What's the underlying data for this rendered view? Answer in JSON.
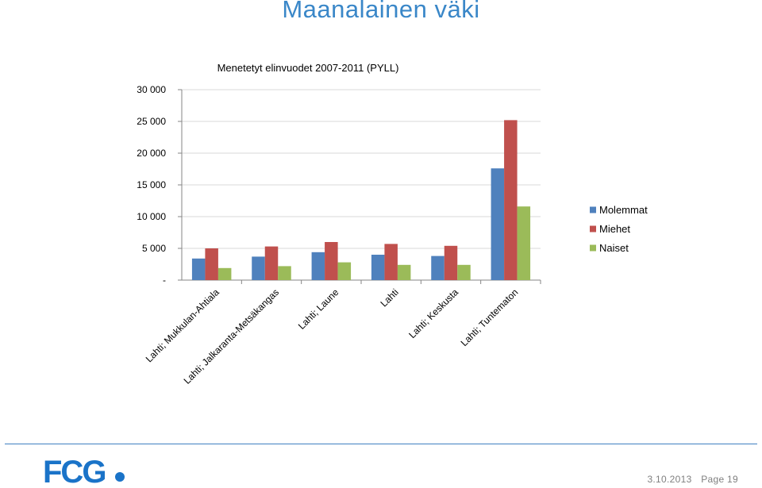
{
  "page": {
    "title": "Maanalainen väki",
    "date": "3.10.2013",
    "page_label": "Page 19",
    "logo_text": "FCG",
    "accent_color": "#1a73c8"
  },
  "chart_data": {
    "type": "bar",
    "title": "Menetetyt elinvuodet 2007-2011 (PYLL)",
    "xlabel": "",
    "ylabel": "",
    "ylim": [
      0,
      30000
    ],
    "yticks": [
      0,
      5000,
      10000,
      15000,
      20000,
      25000,
      30000
    ],
    "ytick_labels": [
      "-",
      "5 000",
      "10 000",
      "15 000",
      "20 000",
      "25 000",
      "30 000"
    ],
    "grid": true,
    "legend_position": "right",
    "categories": [
      "Lahti; Mukkulan-Ahtiala",
      "Lahti; Jalkaranta-Metsäkangas",
      "Lahti; Laune",
      "Lahti",
      "Lahti; Keskusta",
      "Lahti; Tuntematon"
    ],
    "series": [
      {
        "name": "Molemmat",
        "color": "#4f81bd",
        "values": [
          3400,
          3700,
          4400,
          4000,
          3800,
          17600
        ]
      },
      {
        "name": "Miehet",
        "color": "#c0504d",
        "values": [
          5000,
          5300,
          6000,
          5700,
          5400,
          25200
        ]
      },
      {
        "name": "Naiset",
        "color": "#9bbb59",
        "values": [
          1900,
          2200,
          2800,
          2400,
          2400,
          11600
        ]
      }
    ]
  }
}
